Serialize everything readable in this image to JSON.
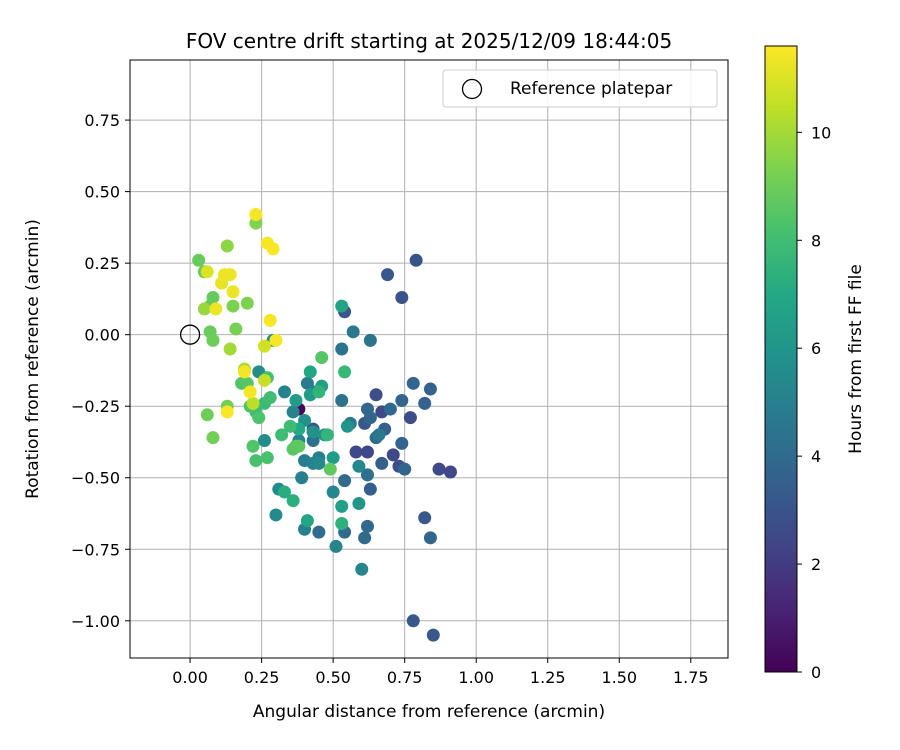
{
  "chart_data": {
    "type": "scatter",
    "title": "FOV centre drift starting at 2025/12/09 18:44:05",
    "xlabel": "Angular distance from reference (arcmin)",
    "ylabel": "Rotation from reference (arcmin)",
    "xlim": [
      -0.21,
      1.88
    ],
    "ylim": [
      -1.13,
      0.96
    ],
    "xticks": [
      0.0,
      0.25,
      0.5,
      0.75,
      1.0,
      1.25,
      1.5,
      1.75
    ],
    "xtick_labels": [
      "0.00",
      "0.25",
      "0.50",
      "0.75",
      "1.00",
      "1.25",
      "1.50",
      "1.75"
    ],
    "yticks": [
      0.75,
      0.5,
      0.25,
      0.0,
      -0.25,
      -0.5,
      -0.75,
      -1.0
    ],
    "ytick_labels": [
      "0.75",
      "0.50",
      "0.25",
      "0.00",
      "−0.25",
      "−0.50",
      "−0.75",
      "−1.00"
    ],
    "grid": true,
    "legend": {
      "position": "top-right",
      "entries": [
        "Reference platepar"
      ]
    },
    "reference_point": {
      "x": 0.0,
      "y": 0.0,
      "label": "Reference platepar"
    },
    "colorbar": {
      "label": "Hours from first FF file",
      "min": 0,
      "max": 11.6,
      "ticks": [
        0,
        2,
        4,
        6,
        8,
        10
      ],
      "tick_labels": [
        "0",
        "2",
        "4",
        "6",
        "8",
        "10"
      ],
      "colormap": "viridis"
    },
    "points": [
      {
        "x": 0.38,
        "y": -0.26,
        "h": 0.2
      },
      {
        "x": 0.58,
        "y": -0.41,
        "h": 2.5
      },
      {
        "x": 0.62,
        "y": -0.41,
        "h": 2.5
      },
      {
        "x": 0.71,
        "y": -0.42,
        "h": 2.5
      },
      {
        "x": 0.67,
        "y": -0.27,
        "h": 2.5
      },
      {
        "x": 0.87,
        "y": -0.47,
        "h": 2.5
      },
      {
        "x": 0.91,
        "y": -0.48,
        "h": 2.5
      },
      {
        "x": 0.77,
        "y": -0.29,
        "h": 2.7
      },
      {
        "x": 0.65,
        "y": -0.21,
        "h": 2.7
      },
      {
        "x": 0.73,
        "y": -0.46,
        "h": 2.7
      },
      {
        "x": 0.79,
        "y": 0.26,
        "h": 3.0
      },
      {
        "x": 0.74,
        "y": 0.13,
        "h": 3.0
      },
      {
        "x": 0.69,
        "y": 0.21,
        "h": 3.2
      },
      {
        "x": 0.43,
        "y": -0.33,
        "h": 3.0
      },
      {
        "x": 0.54,
        "y": 0.08,
        "h": 3.0
      },
      {
        "x": 0.61,
        "y": -0.31,
        "h": 3.2
      },
      {
        "x": 0.78,
        "y": -1.0,
        "h": 3.2
      },
      {
        "x": 0.85,
        "y": -1.05,
        "h": 3.2
      },
      {
        "x": 0.82,
        "y": -0.64,
        "h": 3.2
      },
      {
        "x": 0.63,
        "y": -0.54,
        "h": 3.5
      },
      {
        "x": 0.67,
        "y": -0.45,
        "h": 3.5
      },
      {
        "x": 0.68,
        "y": -0.33,
        "h": 3.5
      },
      {
        "x": 0.82,
        "y": -0.24,
        "h": 3.6
      },
      {
        "x": 0.84,
        "y": -0.19,
        "h": 3.6
      },
      {
        "x": 0.78,
        "y": -0.17,
        "h": 3.7
      },
      {
        "x": 0.74,
        "y": -0.23,
        "h": 3.7
      },
      {
        "x": 0.74,
        "y": -0.38,
        "h": 3.7
      },
      {
        "x": 0.75,
        "y": -0.47,
        "h": 3.7
      },
      {
        "x": 0.84,
        "y": -0.71,
        "h": 3.8
      },
      {
        "x": 0.62,
        "y": -0.26,
        "h": 3.8
      },
      {
        "x": 0.63,
        "y": -0.29,
        "h": 3.8
      },
      {
        "x": 0.7,
        "y": -0.26,
        "h": 3.9
      },
      {
        "x": 0.65,
        "y": -0.36,
        "h": 3.9
      },
      {
        "x": 0.54,
        "y": -0.51,
        "h": 4.0
      },
      {
        "x": 0.62,
        "y": -0.67,
        "h": 4.0
      },
      {
        "x": 0.61,
        "y": -0.71,
        "h": 4.0
      },
      {
        "x": 0.54,
        "y": -0.69,
        "h": 4.1
      },
      {
        "x": 0.45,
        "y": -0.69,
        "h": 4.1
      },
      {
        "x": 0.62,
        "y": -0.49,
        "h": 4.2
      },
      {
        "x": 0.43,
        "y": -0.37,
        "h": 4.3
      },
      {
        "x": 0.53,
        "y": -0.23,
        "h": 4.4
      },
      {
        "x": 0.53,
        "y": -0.05,
        "h": 4.4
      },
      {
        "x": 0.63,
        "y": -0.02,
        "h": 4.4
      },
      {
        "x": 0.57,
        "y": 0.01,
        "h": 4.6
      },
      {
        "x": 0.66,
        "y": -0.35,
        "h": 4.6
      },
      {
        "x": 0.56,
        "y": -0.31,
        "h": 4.7
      },
      {
        "x": 0.41,
        "y": -0.17,
        "h": 4.8
      },
      {
        "x": 0.43,
        "y": -0.2,
        "h": 4.8
      },
      {
        "x": 0.45,
        "y": -0.43,
        "h": 4.9
      },
      {
        "x": 0.4,
        "y": -0.44,
        "h": 4.9
      },
      {
        "x": 0.39,
        "y": -0.5,
        "h": 5.0
      },
      {
        "x": 0.4,
        "y": -0.68,
        "h": 5.0
      },
      {
        "x": 0.33,
        "y": -0.2,
        "h": 5.1
      },
      {
        "x": 0.36,
        "y": -0.27,
        "h": 5.1
      },
      {
        "x": 0.38,
        "y": -0.37,
        "h": 5.2
      },
      {
        "x": 0.43,
        "y": -0.45,
        "h": 5.2
      },
      {
        "x": 0.51,
        "y": -0.74,
        "h": 5.2
      },
      {
        "x": 0.5,
        "y": -0.55,
        "h": 5.3
      },
      {
        "x": 0.6,
        "y": -0.82,
        "h": 5.3
      },
      {
        "x": 0.59,
        "y": -0.46,
        "h": 5.4
      },
      {
        "x": 0.45,
        "y": -0.45,
        "h": 5.4
      },
      {
        "x": 0.31,
        "y": -0.54,
        "h": 5.5
      },
      {
        "x": 0.3,
        "y": -0.63,
        "h": 5.5
      },
      {
        "x": 0.24,
        "y": -0.13,
        "h": 5.6
      },
      {
        "x": 0.26,
        "y": -0.37,
        "h": 5.6
      },
      {
        "x": 0.29,
        "y": -0.02,
        "h": 5.7
      },
      {
        "x": 0.4,
        "y": -0.3,
        "h": 5.8
      },
      {
        "x": 0.43,
        "y": -0.34,
        "h": 5.9
      },
      {
        "x": 0.47,
        "y": -0.35,
        "h": 5.9
      },
      {
        "x": 0.55,
        "y": -0.32,
        "h": 6.0
      },
      {
        "x": 0.59,
        "y": -0.59,
        "h": 6.1
      },
      {
        "x": 0.5,
        "y": -0.43,
        "h": 6.3
      },
      {
        "x": 0.42,
        "y": -0.21,
        "h": 6.3
      },
      {
        "x": 0.37,
        "y": -0.23,
        "h": 6.4
      },
      {
        "x": 0.46,
        "y": -0.18,
        "h": 6.5
      },
      {
        "x": 0.53,
        "y": -0.6,
        "h": 6.6
      },
      {
        "x": 0.53,
        "y": 0.1,
        "h": 6.7
      },
      {
        "x": 0.41,
        "y": -0.65,
        "h": 6.8
      },
      {
        "x": 0.42,
        "y": -0.13,
        "h": 6.9
      },
      {
        "x": 0.38,
        "y": -0.33,
        "h": 7.0
      },
      {
        "x": 0.33,
        "y": -0.55,
        "h": 7.2
      },
      {
        "x": 0.36,
        "y": -0.58,
        "h": 7.3
      },
      {
        "x": 0.53,
        "y": -0.66,
        "h": 7.4
      },
      {
        "x": 0.45,
        "y": -0.2,
        "h": 7.5
      },
      {
        "x": 0.48,
        "y": -0.35,
        "h": 7.6
      },
      {
        "x": 0.54,
        "y": -0.13,
        "h": 7.7
      },
      {
        "x": 0.26,
        "y": -0.24,
        "h": 7.8
      },
      {
        "x": 0.35,
        "y": -0.32,
        "h": 7.9
      },
      {
        "x": 0.32,
        "y": -0.35,
        "h": 7.9
      },
      {
        "x": 0.28,
        "y": -0.22,
        "h": 8.0
      },
      {
        "x": 0.23,
        "y": -0.27,
        "h": 8.0
      },
      {
        "x": 0.27,
        "y": -0.15,
        "h": 8.1
      },
      {
        "x": 0.23,
        "y": -0.44,
        "h": 8.2
      },
      {
        "x": 0.27,
        "y": -0.43,
        "h": 8.2
      },
      {
        "x": 0.24,
        "y": -0.29,
        "h": 8.3
      },
      {
        "x": 0.21,
        "y": -0.25,
        "h": 8.3
      },
      {
        "x": 0.22,
        "y": -0.39,
        "h": 8.4
      },
      {
        "x": 0.18,
        "y": -0.17,
        "h": 8.4
      },
      {
        "x": 0.2,
        "y": -0.17,
        "h": 8.5
      },
      {
        "x": 0.46,
        "y": -0.08,
        "h": 8.5
      },
      {
        "x": 0.36,
        "y": -0.4,
        "h": 8.6
      },
      {
        "x": 0.37,
        "y": -0.39,
        "h": 8.6
      },
      {
        "x": 0.38,
        "y": -0.39,
        "h": 8.7
      },
      {
        "x": 0.49,
        "y": -0.47,
        "h": 8.7
      },
      {
        "x": 0.07,
        "y": 0.1,
        "h": 8.7
      },
      {
        "x": 0.08,
        "y": 0.13,
        "h": 8.8
      },
      {
        "x": 0.05,
        "y": 0.22,
        "h": 8.8
      },
      {
        "x": 0.03,
        "y": 0.26,
        "h": 8.9
      },
      {
        "x": 0.07,
        "y": 0.01,
        "h": 8.9
      },
      {
        "x": 0.08,
        "y": -0.02,
        "h": 9.0
      },
      {
        "x": 0.06,
        "y": -0.28,
        "h": 9.0
      },
      {
        "x": 0.08,
        "y": -0.36,
        "h": 9.1
      },
      {
        "x": 0.13,
        "y": -0.25,
        "h": 9.1
      },
      {
        "x": 0.16,
        "y": 0.02,
        "h": 9.2
      },
      {
        "x": 0.15,
        "y": 0.1,
        "h": 9.3
      },
      {
        "x": 0.2,
        "y": 0.11,
        "h": 9.3
      },
      {
        "x": 0.23,
        "y": 0.39,
        "h": 9.4
      },
      {
        "x": 0.13,
        "y": 0.31,
        "h": 9.6
      },
      {
        "x": 0.05,
        "y": 0.09,
        "h": 9.8
      },
      {
        "x": 0.14,
        "y": -0.05,
        "h": 10.0
      },
      {
        "x": 0.19,
        "y": -0.12,
        "h": 10.2
      },
      {
        "x": 0.22,
        "y": -0.24,
        "h": 10.4
      },
      {
        "x": 0.26,
        "y": -0.16,
        "h": 10.6
      },
      {
        "x": 0.26,
        "y": -0.04,
        "h": 10.8
      },
      {
        "x": 0.06,
        "y": 0.22,
        "h": 11.0
      },
      {
        "x": 0.11,
        "y": 0.18,
        "h": 11.2
      },
      {
        "x": 0.12,
        "y": 0.21,
        "h": 11.3
      },
      {
        "x": 0.14,
        "y": 0.21,
        "h": 11.3
      },
      {
        "x": 0.15,
        "y": 0.15,
        "h": 11.3
      },
      {
        "x": 0.09,
        "y": 0.09,
        "h": 11.3
      },
      {
        "x": 0.19,
        "y": -0.13,
        "h": 11.4
      },
      {
        "x": 0.21,
        "y": -0.2,
        "h": 11.4
      },
      {
        "x": 0.23,
        "y": 0.42,
        "h": 11.5
      },
      {
        "x": 0.27,
        "y": 0.32,
        "h": 11.5
      },
      {
        "x": 0.29,
        "y": 0.3,
        "h": 11.5
      },
      {
        "x": 0.28,
        "y": 0.05,
        "h": 11.5
      },
      {
        "x": 0.3,
        "y": -0.02,
        "h": 11.5
      },
      {
        "x": 0.13,
        "y": -0.27,
        "h": 11.6
      }
    ]
  }
}
